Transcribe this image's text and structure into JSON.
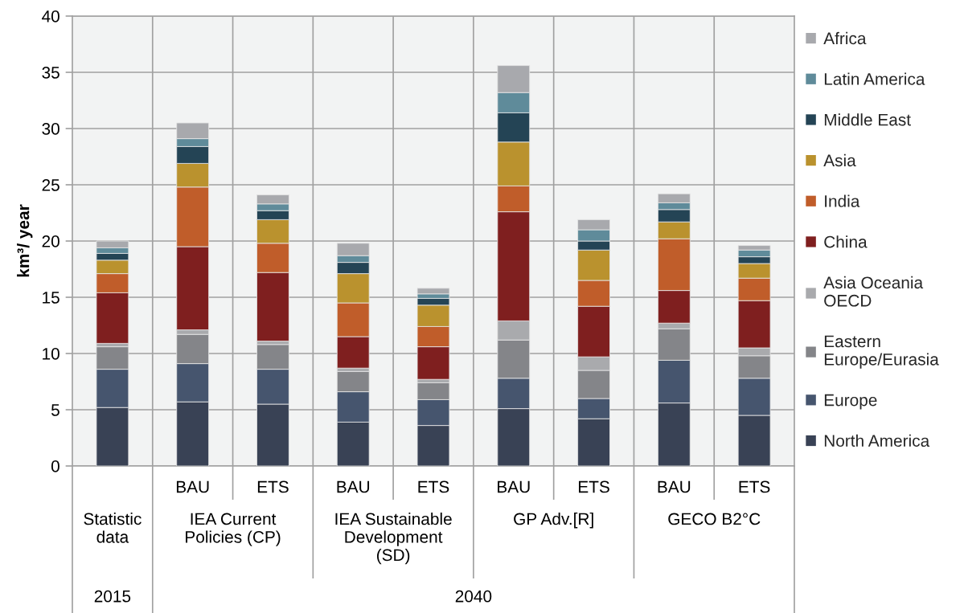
{
  "chart_data": {
    "type": "bar",
    "stacked": true,
    "ylabel": "km³/ year",
    "categories": [
      null,
      "BAU",
      "ETS",
      "BAU",
      "ETS",
      "BAU",
      "ETS",
      "BAU",
      "ETS"
    ],
    "annotations": [
      "Statistic\ndata",
      "IEA Current\nPolicies (CP)",
      "IEA Sustainable\nDevelopment\n(SD)",
      "GP Adv.[R]",
      "GECO B2°C",
      "2015",
      "2040"
    ],
    "ylim": [
      0,
      40
    ],
    "yticks": [
      0,
      5,
      10,
      15,
      20,
      25,
      30,
      35,
      40
    ],
    "grid": true,
    "legend": "right",
    "series": [
      {
        "name": "North America",
        "color": "#394255",
        "values": [
          5.2,
          5.7,
          5.5,
          3.9,
          3.6,
          5.1,
          4.2,
          5.6,
          4.5
        ]
      },
      {
        "name": "Europe",
        "color": "#46556e",
        "values": [
          3.4,
          3.4,
          3.1,
          2.7,
          2.3,
          2.7,
          1.8,
          3.8,
          3.3
        ]
      },
      {
        "name": "Eastern\nEurope/Eurasia",
        "color": "#848589",
        "values": [
          2.0,
          2.6,
          2.2,
          1.8,
          1.5,
          3.4,
          2.5,
          2.8,
          2.0
        ]
      },
      {
        "name": "Asia Oceania\nOECD",
        "color": "#a9aaad",
        "values": [
          0.3,
          0.4,
          0.3,
          0.3,
          0.3,
          1.7,
          1.2,
          0.5,
          0.7
        ]
      },
      {
        "name": "China",
        "color": "#7f1f1f",
        "values": [
          4.5,
          7.4,
          6.1,
          2.8,
          2.9,
          9.7,
          4.5,
          2.9,
          4.2
        ]
      },
      {
        "name": "India",
        "color": "#c05d2a",
        "values": [
          1.7,
          5.3,
          2.6,
          3.0,
          1.8,
          2.3,
          2.3,
          4.6,
          2.0
        ]
      },
      {
        "name": "Asia",
        "color": "#ba922e",
        "values": [
          1.2,
          2.1,
          2.1,
          2.6,
          1.9,
          3.9,
          2.7,
          1.5,
          1.3
        ]
      },
      {
        "name": "Middle East",
        "color": "#244455",
        "values": [
          0.6,
          1.5,
          0.8,
          1.0,
          0.6,
          2.6,
          0.8,
          1.1,
          0.6
        ]
      },
      {
        "name": "Latin America",
        "color": "#5f8b9a",
        "values": [
          0.5,
          0.7,
          0.6,
          0.6,
          0.4,
          1.8,
          1.0,
          0.6,
          0.6
        ]
      },
      {
        "name": "Africa",
        "color": "#a8a9ad",
        "values": [
          0.6,
          1.4,
          0.8,
          1.1,
          0.5,
          2.4,
          0.9,
          0.8,
          0.4
        ]
      }
    ]
  }
}
